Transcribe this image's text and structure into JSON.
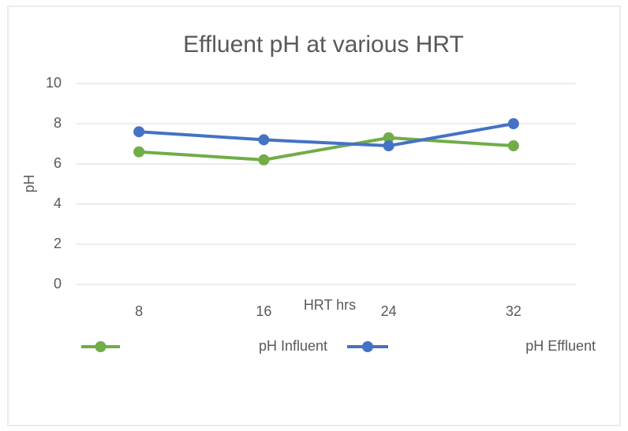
{
  "chart_data": {
    "type": "line",
    "title": "Effluent pH at various HRT",
    "x_label": "HRT hrs",
    "y_label": "pH",
    "categories": [
      "8",
      "16",
      "24",
      "32"
    ],
    "series": [
      {
        "name": "pH Influent",
        "color": "#70ad47",
        "values": [
          6.6,
          6.2,
          7.3,
          6.9
        ]
      },
      {
        "name": "pH Effluent",
        "color": "#4472c4",
        "values": [
          7.6,
          7.2,
          6.9,
          8.0
        ]
      }
    ],
    "ylim": [
      0,
      10
    ],
    "yticks": [
      0,
      2,
      4,
      6,
      8,
      10
    ],
    "grid": true,
    "legend": "bottom"
  }
}
